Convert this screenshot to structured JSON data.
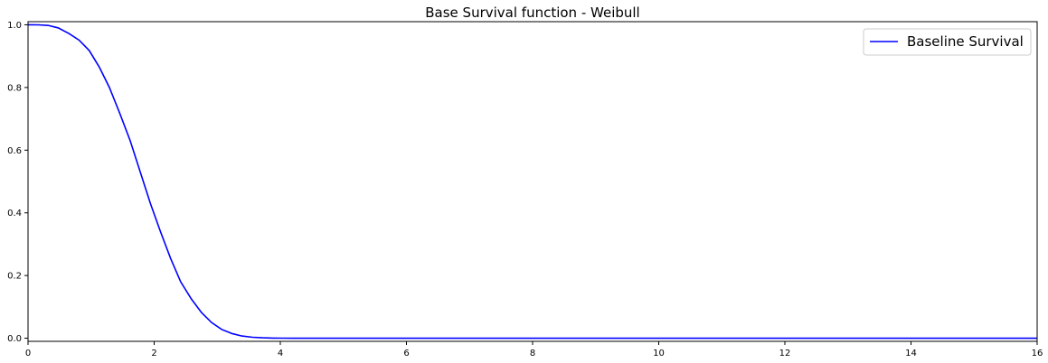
{
  "chart_data": {
    "type": "line",
    "title": "Base Survival function - Weibull",
    "xlabel": "",
    "ylabel": "",
    "xlim": [
      0,
      16
    ],
    "ylim": [
      -0.01,
      1.01
    ],
    "x_ticks": [
      0,
      2,
      4,
      6,
      8,
      10,
      12,
      14,
      16
    ],
    "y_ticks": [
      0.0,
      0.2,
      0.4,
      0.6,
      0.8,
      1.0
    ],
    "x_tick_labels": [
      "0",
      "2",
      "4",
      "6",
      "8",
      "10",
      "12",
      "14",
      "16"
    ],
    "y_tick_labels": [
      "0.0",
      "0.2",
      "0.4",
      "0.6",
      "0.8",
      "1.0"
    ],
    "grid": false,
    "legend_position": "top-right",
    "series": [
      {
        "name": "Baseline Survival",
        "color": "#0000ff",
        "x": [
          0,
          0.16,
          0.32,
          0.48,
          0.65,
          0.81,
          0.97,
          1.13,
          1.29,
          1.45,
          1.62,
          1.78,
          1.94,
          2.1,
          2.26,
          2.42,
          2.59,
          2.75,
          2.91,
          3.07,
          3.23,
          3.39,
          3.56,
          3.72,
          3.88,
          4.04,
          4.2,
          4.5,
          5,
          6,
          7,
          8,
          9,
          10,
          11,
          12,
          13,
          14,
          15,
          16
        ],
        "y": [
          1.0,
          0.9999,
          0.998,
          0.99,
          0.972,
          0.951,
          0.918,
          0.865,
          0.8,
          0.72,
          0.63,
          0.53,
          0.43,
          0.34,
          0.255,
          0.18,
          0.125,
          0.082,
          0.05,
          0.028,
          0.015,
          0.007,
          0.003,
          0.0012,
          0.0004,
          0.0001,
          3e-05,
          0.0,
          0.0,
          0.0,
          0.0,
          0.0,
          0.0,
          0.0,
          0.0,
          0.0,
          0.0,
          0.0,
          0.0,
          0.0
        ]
      }
    ]
  }
}
